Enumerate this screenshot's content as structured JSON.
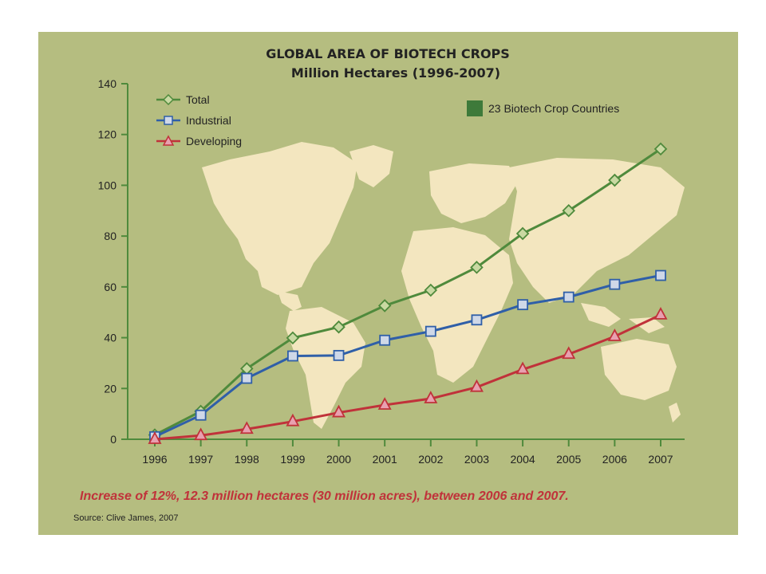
{
  "chart_data": {
    "type": "line",
    "title": "GLOBAL AREA OF BIOTECH CROPS",
    "subtitle": "Million  Hectares (1996-2007)",
    "x": [
      "1996",
      "1997",
      "1998",
      "1999",
      "2000",
      "2001",
      "2002",
      "2003",
      "2004",
      "2005",
      "2006",
      "2007"
    ],
    "ylim": [
      0,
      140
    ],
    "yticks": [
      0,
      20,
      40,
      60,
      80,
      100,
      120,
      140
    ],
    "series": [
      {
        "name": "Total",
        "color": "#4f8a3c",
        "marker": "diamond",
        "values": [
          1.7,
          11,
          27.8,
          39.9,
          44.2,
          52.6,
          58.7,
          67.7,
          81.0,
          90.0,
          102.0,
          114.3
        ]
      },
      {
        "name": "Industrial",
        "color": "#2f5fa8",
        "marker": "square",
        "values": [
          1.0,
          9.5,
          24.0,
          32.8,
          33.0,
          39.0,
          42.5,
          47.0,
          53.0,
          56.0,
          61.0,
          64.5
        ]
      },
      {
        "name": "Developing",
        "color": "#c0323a",
        "marker": "triangle",
        "values": [
          0.0,
          1.5,
          4.0,
          7.0,
          10.5,
          13.5,
          16.0,
          20.5,
          27.5,
          33.5,
          40.5,
          49.0
        ]
      }
    ],
    "legend_placement": "top-left",
    "countries_legend": {
      "label": "23 Biotech Crop Countries",
      "color": "#3e7a3a"
    },
    "annotation": "Increase of 12%, 12.3 million hectares (30 million acres), between 2006 and 2007.",
    "source": "Source: Clive James, 2007",
    "grid": false
  },
  "colors": {
    "background": "#b5bd80",
    "map": "#f3e6bf",
    "axis": "#4f8a3c"
  }
}
